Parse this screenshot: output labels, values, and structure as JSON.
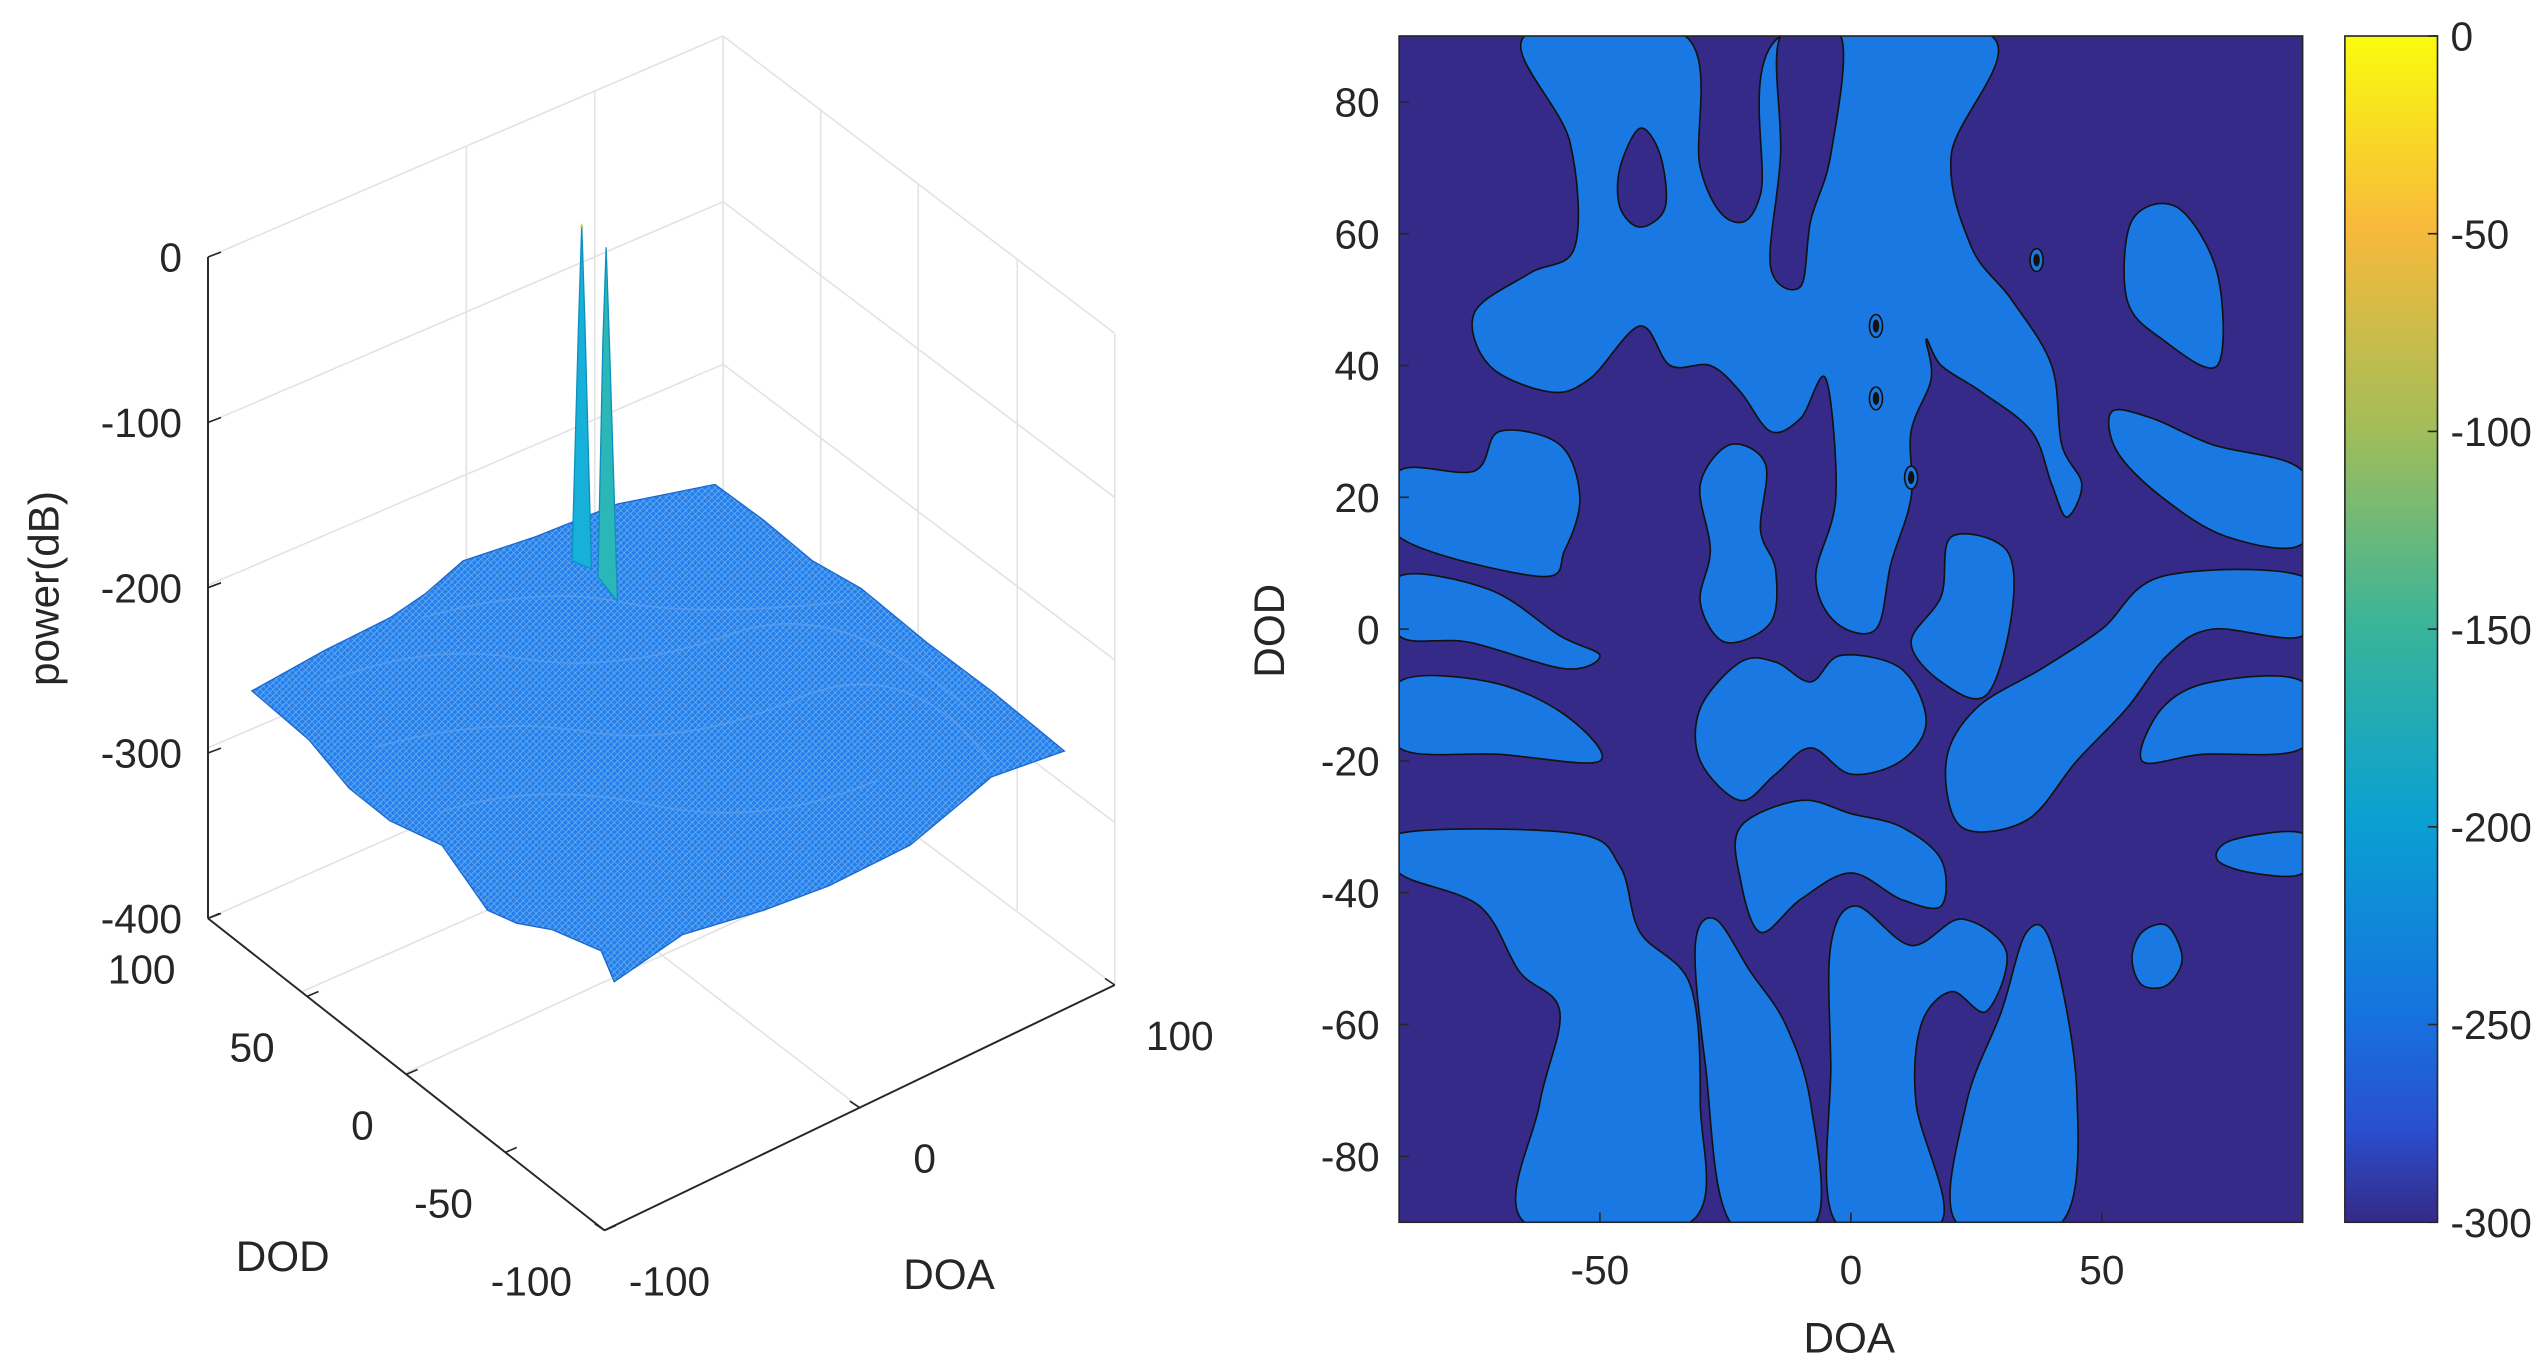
{
  "chart_data": [
    {
      "type": "surface3d",
      "title": "",
      "xlabel": "DOA",
      "ylabel": "DOD",
      "zlabel": "power(dB)",
      "xlim": [
        -100,
        100
      ],
      "ylim": [
        -100,
        100
      ],
      "zlim": [
        -400,
        0
      ],
      "xticks": [
        "-100",
        "0",
        "100"
      ],
      "yticks": [
        "100",
        "50",
        "0",
        "-50",
        "-100"
      ],
      "zticks": [
        "0",
        "-100",
        "-200",
        "-300",
        "-400"
      ],
      "grid": true,
      "surface_floor_db": -260,
      "peaks": [
        {
          "doa": 5,
          "dod": 46,
          "power_db": 0
        },
        {
          "doa": 5,
          "dod": 35,
          "power_db": -5
        }
      ]
    },
    {
      "type": "contour",
      "xlabel": "DOA",
      "ylabel": "DOD",
      "xlim": [
        -90,
        90
      ],
      "ylim": [
        -90,
        90
      ],
      "xticks": [
        -50,
        0,
        50
      ],
      "yticks": [
        80,
        60,
        40,
        20,
        0,
        -20,
        -40,
        -60,
        -80
      ],
      "colorbar": {
        "min": -300,
        "max": 0,
        "ticks": [
          0,
          -50,
          -100,
          -150,
          -200,
          -250,
          -300
        ],
        "colormap": "parula",
        "location": "right"
      },
      "background_level_db": -300,
      "colors": {
        "low": "#352a87",
        "mid": "#1a78e2"
      },
      "regions_level_db": -260,
      "regions": [
        [
          [
            -65,
            90
          ],
          [
            -33,
            90
          ],
          [
            -30,
            70
          ],
          [
            -24,
            62
          ],
          [
            -18,
            66
          ],
          [
            -14,
            90
          ],
          [
            28,
            90
          ],
          [
            20,
            72
          ],
          [
            24,
            58
          ],
          [
            32,
            50
          ],
          [
            40,
            40
          ],
          [
            42,
            28
          ],
          [
            46,
            22
          ],
          [
            43,
            17
          ],
          [
            40,
            22
          ],
          [
            36,
            30
          ],
          [
            26,
            36
          ],
          [
            18,
            40
          ],
          [
            15,
            44
          ],
          [
            16,
            38
          ],
          [
            12,
            30
          ],
          [
            12,
            20
          ],
          [
            8,
            10
          ],
          [
            5,
            0
          ],
          [
            -3,
            1
          ],
          [
            -7,
            8
          ],
          [
            -3,
            20
          ],
          [
            -5,
            38
          ],
          [
            -10,
            32
          ],
          [
            -16,
            30
          ],
          [
            -22,
            36
          ],
          [
            -28,
            40
          ],
          [
            -36,
            40
          ],
          [
            -42,
            46
          ],
          [
            -52,
            38
          ],
          [
            -60,
            36
          ],
          [
            -72,
            40
          ],
          [
            -75,
            48
          ],
          [
            -64,
            54
          ],
          [
            -55,
            58
          ],
          [
            -56,
            74
          ]
        ],
        [
          [
            -90,
            24
          ],
          [
            -75,
            24
          ],
          [
            -70,
            30
          ],
          [
            -58,
            28
          ],
          [
            -54,
            20
          ],
          [
            -57,
            12
          ],
          [
            -62,
            8
          ],
          [
            -90,
            14
          ]
        ],
        [
          [
            -90,
            8
          ],
          [
            -72,
            6
          ],
          [
            -58,
            -1
          ],
          [
            -50,
            -4
          ],
          [
            -57,
            -6
          ],
          [
            -76,
            -2
          ],
          [
            -90,
            -1
          ]
        ],
        [
          [
            -90,
            -8
          ],
          [
            -72,
            -8
          ],
          [
            -57,
            -13
          ],
          [
            -50,
            -20
          ],
          [
            -70,
            -19
          ],
          [
            -90,
            -18
          ]
        ],
        [
          [
            -90,
            -31
          ],
          [
            -55,
            -31
          ],
          [
            -46,
            -36
          ],
          [
            -42,
            -46
          ],
          [
            -32,
            -54
          ],
          [
            -30,
            -72
          ],
          [
            -32,
            -90
          ],
          [
            -65,
            -90
          ],
          [
            -62,
            -72
          ],
          [
            -58,
            -58
          ],
          [
            -66,
            -52
          ],
          [
            -74,
            -42
          ],
          [
            -90,
            -37
          ]
        ],
        [
          [
            -24,
            -90
          ],
          [
            -7,
            -90
          ],
          [
            -8,
            -72
          ],
          [
            -13,
            -60
          ],
          [
            -20,
            -52
          ],
          [
            -27,
            -44
          ],
          [
            -31,
            -48
          ],
          [
            -29,
            -66
          ]
        ],
        [
          [
            -3,
            -90
          ],
          [
            18,
            -90
          ],
          [
            13,
            -72
          ],
          [
            14,
            -60
          ],
          [
            20,
            -55
          ],
          [
            27,
            -58
          ],
          [
            31,
            -49
          ],
          [
            22,
            -44
          ],
          [
            12,
            -48
          ],
          [
            1,
            -42
          ],
          [
            -4,
            -48
          ],
          [
            -4,
            -66
          ]
        ],
        [
          [
            21,
            -90
          ],
          [
            42,
            -90
          ],
          [
            45,
            -70
          ],
          [
            40,
            -48
          ],
          [
            35,
            -46
          ],
          [
            30,
            -58
          ],
          [
            23,
            -72
          ]
        ],
        [
          [
            -30,
            22
          ],
          [
            -24,
            28
          ],
          [
            -17,
            25
          ],
          [
            -18,
            15
          ],
          [
            -15,
            9
          ],
          [
            -16,
            1
          ],
          [
            -25,
            -2
          ],
          [
            -30,
            4
          ],
          [
            -28,
            12
          ]
        ],
        [
          [
            20,
            14
          ],
          [
            31,
            12
          ],
          [
            32,
            2
          ],
          [
            27,
            -10
          ],
          [
            18,
            -8
          ],
          [
            12,
            -2
          ],
          [
            18,
            5
          ]
        ],
        [
          [
            -30,
            -12
          ],
          [
            -22,
            -5
          ],
          [
            -15,
            -5
          ],
          [
            -8,
            -8
          ],
          [
            -2,
            -4
          ],
          [
            10,
            -6
          ],
          [
            15,
            -14
          ],
          [
            10,
            -20
          ],
          [
            0,
            -22
          ],
          [
            -8,
            -18
          ],
          [
            -15,
            -22
          ],
          [
            -22,
            -26
          ],
          [
            -30,
            -20
          ]
        ],
        [
          [
            -22,
            -30
          ],
          [
            -10,
            -26
          ],
          [
            0,
            -28
          ],
          [
            10,
            -30
          ],
          [
            18,
            -35
          ],
          [
            18,
            -42
          ],
          [
            10,
            -41
          ],
          [
            0,
            -37
          ],
          [
            -10,
            -41
          ],
          [
            -18,
            -46
          ],
          [
            -22,
            -38
          ]
        ],
        [
          [
            90,
            24
          ],
          [
            72,
            28
          ],
          [
            60,
            32
          ],
          [
            52,
            33
          ],
          [
            53,
            27
          ],
          [
            62,
            20
          ],
          [
            75,
            14
          ],
          [
            90,
            13
          ]
        ],
        [
          [
            90,
            8
          ],
          [
            62,
            8
          ],
          [
            50,
            0
          ],
          [
            38,
            -6
          ],
          [
            25,
            -12
          ],
          [
            19,
            -20
          ],
          [
            22,
            -30
          ],
          [
            35,
            -29
          ],
          [
            45,
            -20
          ],
          [
            55,
            -12
          ],
          [
            63,
            -4
          ],
          [
            72,
            0
          ],
          [
            90,
            -1
          ]
        ],
        [
          [
            90,
            -8
          ],
          [
            72,
            -8
          ],
          [
            62,
            -12
          ],
          [
            58,
            -20
          ],
          [
            70,
            -19
          ],
          [
            90,
            -18
          ]
        ],
        [
          [
            90,
            -31
          ],
          [
            76,
            -32
          ],
          [
            73,
            -35
          ],
          [
            80,
            -37
          ],
          [
            90,
            -37
          ]
        ],
        [
          [
            55,
            50
          ],
          [
            56,
            62
          ],
          [
            65,
            64
          ],
          [
            73,
            54
          ],
          [
            73,
            40
          ],
          [
            62,
            44
          ]
        ],
        [
          [
            56,
            -50
          ],
          [
            58,
            -46
          ],
          [
            63,
            -45
          ],
          [
            66,
            -50
          ],
          [
            63,
            -54
          ],
          [
            58,
            -54
          ]
        ]
      ],
      "holes": [
        [
          [
            -46,
            70
          ],
          [
            -42,
            76
          ],
          [
            -38,
            72
          ],
          [
            -37,
            64
          ],
          [
            -42,
            61
          ],
          [
            -46,
            64
          ]
        ],
        [
          [
            -14,
            90
          ],
          [
            -2,
            90
          ],
          [
            -4,
            72
          ],
          [
            -8,
            62
          ],
          [
            -10,
            52
          ],
          [
            -16,
            55
          ],
          [
            -14,
            72
          ]
        ]
      ],
      "peak_markers": [
        {
          "doa": 5,
          "dod": 46
        },
        {
          "doa": 5,
          "dod": 35
        },
        {
          "doa": 12,
          "dod": 23
        },
        {
          "doa": 37,
          "dod": 56
        }
      ]
    }
  ]
}
